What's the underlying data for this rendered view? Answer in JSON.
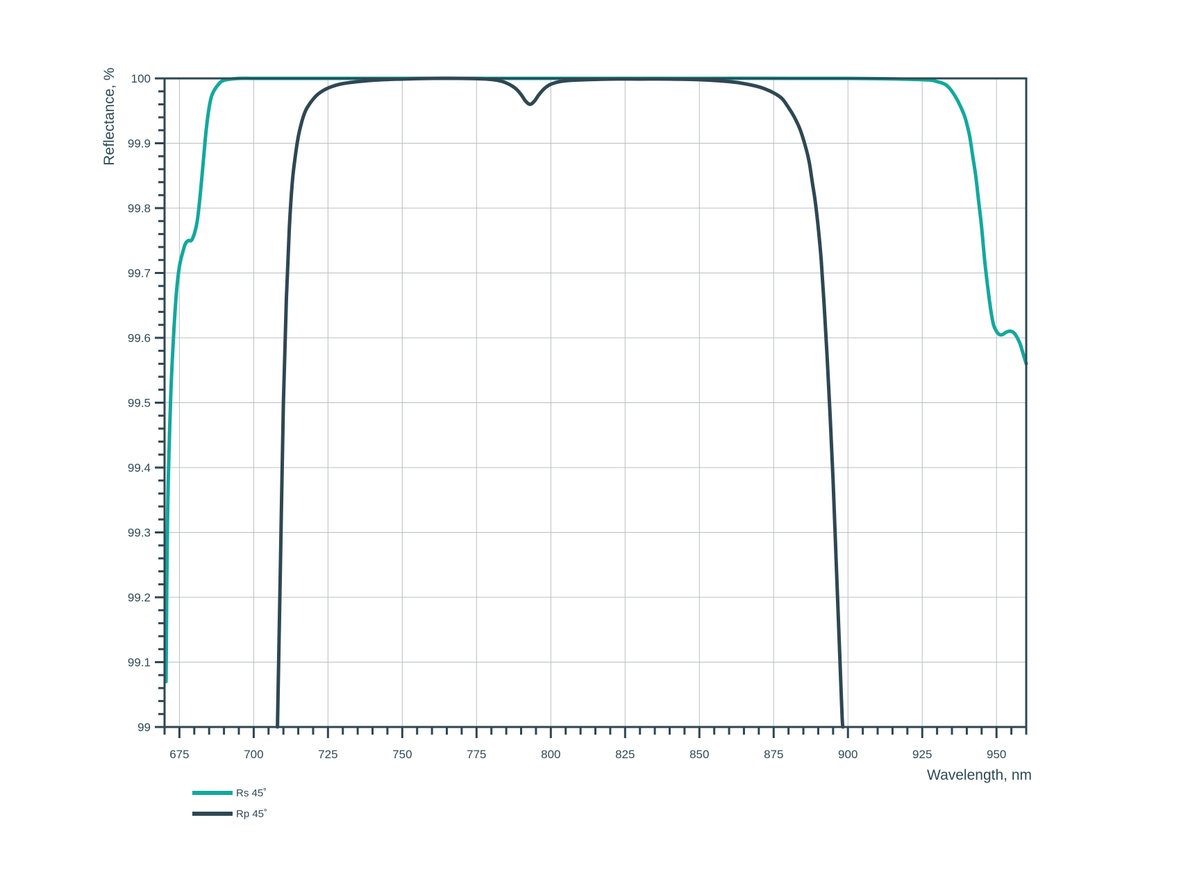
{
  "chart_data": {
    "type": "line",
    "title": "",
    "xlabel": "Wavelength, nm",
    "ylabel": "Reflectance, %",
    "xlim": [
      670,
      960
    ],
    "ylim": [
      99,
      100
    ],
    "x_ticks": [
      675,
      700,
      725,
      750,
      775,
      800,
      825,
      850,
      875,
      900,
      925,
      950
    ],
    "y_ticks": [
      99,
      99.1,
      99.2,
      99.3,
      99.4,
      99.5,
      99.6,
      99.7,
      99.8,
      99.9,
      100
    ],
    "y_tick_labels": [
      "99",
      "99.1",
      "99.2",
      "99.3",
      "99.4",
      "99.5",
      "99.6",
      "99.7",
      "99.8",
      "99.9",
      "100"
    ],
    "grid": true,
    "legend_position": "bottom-left",
    "series": [
      {
        "name": "Rs 45˚",
        "color": "#13a89e",
        "x": [
          670.5,
          671,
          672,
          673,
          674,
          675,
          676,
          677,
          678,
          679,
          680,
          681,
          682,
          683,
          684,
          685,
          686,
          688,
          690,
          695,
          700,
          710,
          750,
          800,
          850,
          900,
          925,
          930,
          933,
          935,
          937,
          939,
          940,
          941,
          942,
          943,
          944,
          945,
          946,
          947,
          948,
          949,
          950,
          951,
          952,
          953,
          954,
          955,
          956,
          957,
          958,
          959,
          960
        ],
        "y": [
          99.07,
          99.32,
          99.5,
          99.6,
          99.67,
          99.71,
          99.73,
          99.745,
          99.75,
          99.75,
          99.76,
          99.78,
          99.82,
          99.87,
          99.92,
          99.955,
          99.975,
          99.99,
          99.997,
          100,
          100,
          100,
          100,
          100,
          100,
          100,
          99.998,
          99.995,
          99.99,
          99.98,
          99.965,
          99.945,
          99.93,
          99.91,
          99.88,
          99.85,
          99.81,
          99.77,
          99.72,
          99.68,
          99.645,
          99.62,
          99.61,
          99.605,
          99.605,
          99.608,
          99.61,
          99.61,
          99.607,
          99.6,
          99.59,
          99.575,
          99.56
        ]
      },
      {
        "name": "Rp 45˚",
        "color": "#2e4753",
        "x": [
          708,
          709,
          710,
          711,
          712,
          713,
          714,
          715,
          716,
          717,
          718,
          720,
          722,
          725,
          730,
          740,
          750,
          760,
          770,
          778,
          782,
          785,
          788,
          790,
          791.5,
          793,
          794.5,
          796,
          798,
          800,
          803,
          807,
          812,
          820,
          830,
          840,
          850,
          860,
          865,
          870,
          873,
          876,
          878,
          880,
          882,
          884,
          886,
          887,
          888,
          889,
          890,
          891,
          892,
          893,
          894,
          895,
          896,
          897,
          898,
          898.3
        ],
        "y": [
          99,
          99.25,
          99.5,
          99.66,
          99.77,
          99.84,
          99.88,
          99.91,
          99.93,
          99.945,
          99.955,
          99.968,
          99.977,
          99.985,
          99.992,
          99.997,
          99.999,
          100,
          100,
          99.999,
          99.997,
          99.993,
          99.985,
          99.975,
          99.965,
          99.96,
          99.965,
          99.975,
          99.985,
          99.991,
          99.995,
          99.997,
          99.998,
          99.999,
          99.999,
          99.999,
          99.998,
          99.995,
          99.992,
          99.987,
          99.982,
          99.975,
          99.968,
          99.955,
          99.94,
          99.92,
          99.89,
          99.87,
          99.84,
          99.81,
          99.77,
          99.72,
          99.65,
          99.57,
          99.48,
          99.38,
          99.26,
          99.14,
          99.02,
          99
        ]
      }
    ]
  }
}
